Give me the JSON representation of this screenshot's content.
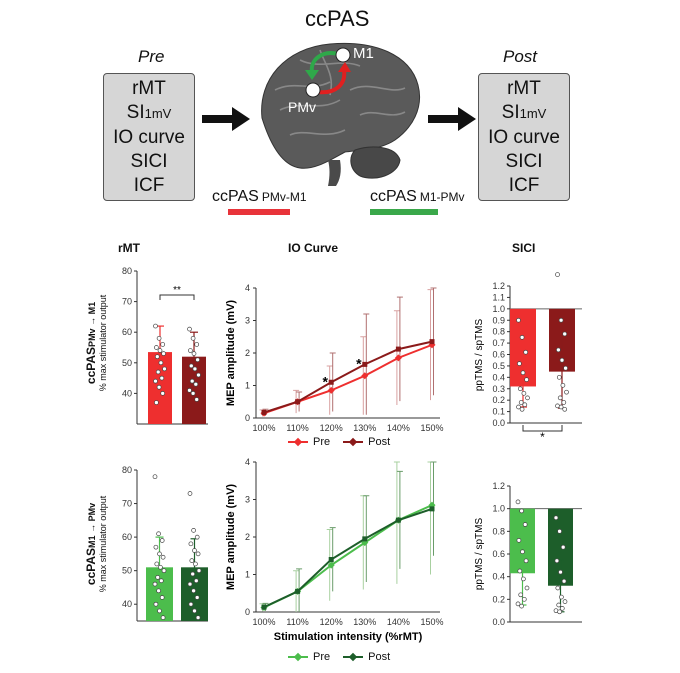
{
  "top": {
    "title": "ccPAS",
    "pre_header": "Pre",
    "post_header": "Post",
    "pre_items": [
      "rMT",
      "SI",
      "IO curve",
      "SICI",
      "ICF"
    ],
    "post_items": [
      "rMT",
      "SI",
      "IO curve",
      "SICI",
      "ICF"
    ],
    "si_subscript": "1mV",
    "brain_labels": {
      "m1": "M1",
      "pmv": "PMv"
    },
    "condition_red": {
      "main": "ccPAS",
      "sub": "PMv-M1",
      "color": "#e8333a"
    },
    "condition_green": {
      "main": "ccPAS",
      "sub": "M1-PMv",
      "color": "#3aa84a"
    }
  },
  "panel_titles": {
    "rmt": "rMT",
    "io": "IO Curve",
    "sici": "SICI"
  },
  "row_labels": {
    "row1_main": "ccPAS",
    "row1_sub": "PMv → M1",
    "row2_main": "ccPAS",
    "row2_sub": "M1 → PMv",
    "units": "% max stimulator output"
  },
  "legend": {
    "pre": "Pre",
    "post": "Post"
  },
  "colors": {
    "red_pre": "#ee2f2f",
    "red_post": "#8b1a1a",
    "green_pre": "#4cbd4c",
    "green_post": "#1d5e2a",
    "error_red": "#d9a0a0",
    "error_green": "#a8d0a0"
  },
  "chart_data": [
    {
      "type": "bar",
      "panel": "rMT",
      "row": "ccPAS PMv→M1",
      "categories": [
        "Pre",
        "Post"
      ],
      "values": [
        53.5,
        52
      ],
      "error": [
        8.5,
        8
      ],
      "ylim": [
        30,
        80
      ],
      "yticks": [
        40,
        50,
        60,
        70,
        80
      ],
      "ylabel": "% max stimulator output",
      "annotation": "**",
      "points": [
        [
          62,
          58,
          56,
          55,
          54,
          53,
          52,
          50,
          48,
          47,
          45,
          44,
          42,
          40,
          37
        ],
        [
          61,
          58,
          56,
          54,
          53,
          51,
          49,
          48,
          46,
          44,
          43,
          41,
          40,
          38
        ]
      ]
    },
    {
      "type": "line",
      "panel": "IO Curve",
      "row": "ccPAS PMv→M1",
      "x": [
        "100%",
        "110%",
        "120%",
        "130%",
        "140%",
        "150%"
      ],
      "ylabel": "MEP amplitude (mV)",
      "ylim": [
        0,
        4
      ],
      "yticks": [
        0,
        1,
        2,
        3,
        4
      ],
      "series": [
        {
          "name": "Pre",
          "values": [
            0.15,
            0.5,
            0.85,
            1.3,
            1.85,
            2.25
          ],
          "error": [
            0.1,
            0.35,
            0.75,
            1.2,
            1.45,
            1.7
          ]
        },
        {
          "name": "Post",
          "values": [
            0.17,
            0.5,
            1.1,
            1.65,
            2.12,
            2.35
          ],
          "error": [
            0.1,
            0.3,
            0.9,
            1.55,
            1.6,
            1.65
          ]
        }
      ],
      "annotations": [
        {
          "x": "120%",
          "text": "*"
        },
        {
          "x": "130%",
          "text": "*"
        }
      ]
    },
    {
      "type": "bar",
      "panel": "SICI",
      "row": "ccPAS PMv→M1",
      "categories": [
        "Pre",
        "Post"
      ],
      "values": [
        0.32,
        0.45
      ],
      "error": [
        0.18,
        0.32
      ],
      "ylim": [
        0,
        1.2
      ],
      "yticks": [
        0.0,
        0.1,
        0.2,
        0.3,
        0.4,
        0.5,
        0.6,
        0.7,
        0.8,
        0.9,
        1.0,
        1.1,
        1.2
      ],
      "ylabel": "ppTMS / spTMS",
      "reference_line": 1.0,
      "annotation": "*",
      "points": [
        [
          0.9,
          0.75,
          0.62,
          0.52,
          0.44,
          0.38,
          0.3,
          0.26,
          0.22,
          0.18,
          0.16,
          0.14,
          0.12
        ],
        [
          1.3,
          0.9,
          0.78,
          0.64,
          0.55,
          0.48,
          0.4,
          0.33,
          0.27,
          0.22,
          0.18,
          0.15,
          0.14,
          0.12
        ]
      ]
    },
    {
      "type": "bar",
      "panel": "rMT",
      "row": "ccPAS M1→PMv",
      "categories": [
        "Pre",
        "Post"
      ],
      "values": [
        51,
        51
      ],
      "error": [
        9,
        8.5
      ],
      "ylim": [
        35,
        80
      ],
      "yticks": [
        40,
        50,
        60,
        70,
        80
      ],
      "ylabel": "% max stimulator output",
      "points": [
        [
          78,
          61,
          59,
          57,
          55,
          54,
          52,
          51,
          50,
          48,
          47,
          46,
          44,
          42,
          40,
          38,
          36
        ],
        [
          73,
          62,
          60,
          58,
          56,
          55,
          53,
          52,
          50,
          49,
          47,
          46,
          44,
          42,
          40,
          38,
          36
        ]
      ]
    },
    {
      "type": "line",
      "panel": "IO Curve",
      "row": "ccPAS M1→PMv",
      "x": [
        "100%",
        "110%",
        "120%",
        "130%",
        "140%",
        "150%"
      ],
      "xlabel": "Stimulation intensity (%rMT)",
      "ylabel": "MEP amplitude (mV)",
      "ylim": [
        0,
        4
      ],
      "yticks": [
        0,
        1,
        2,
        3,
        4
      ],
      "series": [
        {
          "name": "Pre",
          "values": [
            0.12,
            0.55,
            1.25,
            1.85,
            2.45,
            2.85
          ],
          "error": [
            0.1,
            0.55,
            0.95,
            1.25,
            1.7,
            1.85
          ]
        },
        {
          "name": "Post",
          "values": [
            0.13,
            0.55,
            1.4,
            1.95,
            2.45,
            2.75
          ],
          "error": [
            0.1,
            0.6,
            0.85,
            1.15,
            1.3,
            1.25
          ]
        }
      ]
    },
    {
      "type": "bar",
      "panel": "SICI",
      "row": "ccPAS M1→PMv",
      "categories": [
        "Pre",
        "Post"
      ],
      "values": [
        0.43,
        0.32
      ],
      "error": [
        0.28,
        0.23
      ],
      "ylim": [
        0,
        1.2
      ],
      "yticks": [
        0.0,
        0.2,
        0.4,
        0.6,
        0.8,
        1.0,
        1.2
      ],
      "ylabel": "ppTMS / spTMS",
      "reference_line": 1.0,
      "points": [
        [
          1.06,
          0.98,
          0.86,
          0.72,
          0.62,
          0.54,
          0.45,
          0.38,
          0.3,
          0.24,
          0.2,
          0.16,
          0.14
        ],
        [
          0.92,
          0.8,
          0.66,
          0.54,
          0.44,
          0.36,
          0.3,
          0.22,
          0.18,
          0.15,
          0.12,
          0.1,
          0.09
        ]
      ]
    }
  ]
}
